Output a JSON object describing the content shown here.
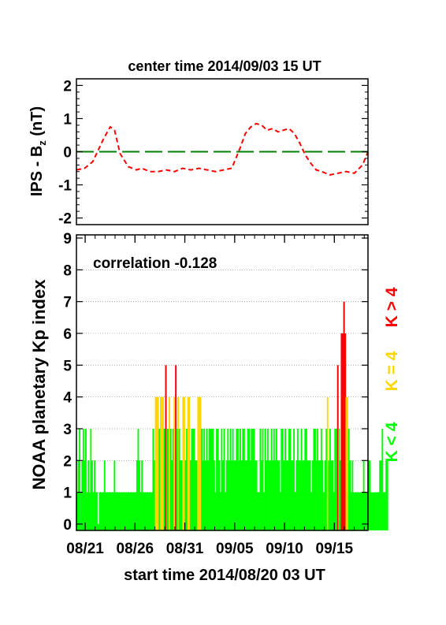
{
  "chart_data": [
    {
      "type": "line",
      "title": "center time 2014/09/03 15 UT",
      "ylabel": "IPS - B",
      "ylabel_sub": "z",
      "ylabel_unit": " (nT)",
      "ylim": [
        -2.2,
        2.2
      ],
      "yticks": [
        "-2",
        "-1",
        "0",
        "1",
        "2"
      ],
      "grid": false,
      "series": [
        {
          "color": "#ff0000",
          "style": "dashed",
          "x": [
            0,
            1.5,
            3,
            4,
            5,
            6.2,
            7,
            8,
            9.5,
            11,
            12,
            13.5,
            15,
            16.5,
            18,
            19.5,
            21,
            22.5,
            24,
            25.5,
            27,
            28.5,
            30,
            31,
            32,
            33,
            34,
            35,
            36,
            37,
            38,
            39,
            40,
            41,
            42,
            43,
            44,
            45,
            46.5,
            48,
            49.5,
            51,
            52.5,
            53.5
          ],
          "y": [
            -0.55,
            -0.5,
            -0.3,
            0.05,
            0.4,
            0.75,
            0.65,
            -0.05,
            -0.45,
            -0.55,
            -0.5,
            -0.6,
            -0.6,
            -0.55,
            -0.6,
            -0.5,
            -0.55,
            -0.5,
            -0.55,
            -0.6,
            -0.55,
            -0.5,
            0.1,
            0.55,
            0.75,
            0.85,
            0.8,
            0.65,
            0.7,
            0.6,
            0.65,
            0.7,
            0.55,
            0.25,
            -0.1,
            -0.35,
            -0.55,
            -0.6,
            -0.7,
            -0.65,
            -0.6,
            -0.65,
            -0.4,
            0.0
          ]
        },
        {
          "color": "#008000",
          "style": "long-dash",
          "x": [
            0,
            53.5
          ],
          "y": [
            0,
            0
          ]
        }
      ]
    },
    {
      "type": "bar",
      "annotation": "correlation -0.128",
      "ylabel": "NOAA planetary Kp index",
      "xlabel": "start time 2014/08/20 03 UT",
      "x_tick_labels": [
        "08/21",
        "08/26",
        "08/31",
        "09/05",
        "09/10",
        "09/15"
      ],
      "x_tick_days": [
        0.875,
        5.875,
        10.875,
        15.875,
        20.875,
        25.875
      ],
      "xlim_days": [
        0,
        29.25
      ],
      "bin_hours": 3,
      "ylim": [
        -0.2,
        9.1
      ],
      "yticks": [
        "0",
        "1",
        "2",
        "3",
        "4",
        "5",
        "6",
        "7",
        "8",
        "9"
      ],
      "grid": "horizontal dotted",
      "legend": [
        {
          "text": "K < 4",
          "color": "#00ff00"
        },
        {
          "text": "K = 4",
          "color": "#ffd700"
        },
        {
          "text": "K > 4",
          "color": "#ff0000"
        }
      ],
      "values": [
        1,
        2,
        3,
        1,
        2,
        3,
        2,
        3,
        1,
        2,
        1,
        3,
        2,
        1,
        2,
        1,
        1,
        0,
        1,
        1,
        1,
        1,
        2,
        1,
        1,
        1,
        1,
        1,
        1,
        1,
        2,
        1,
        1,
        1,
        1,
        1,
        1,
        1,
        1,
        1,
        1,
        1,
        1,
        1,
        1,
        1,
        1,
        1,
        2,
        3,
        2,
        1,
        2,
        1,
        1,
        1,
        1,
        1,
        1,
        1,
        1,
        3,
        2,
        4,
        4,
        4,
        3,
        4,
        4,
        4,
        3,
        5,
        3,
        3,
        4,
        3,
        2,
        3,
        4,
        5,
        3,
        4,
        3,
        2,
        2,
        4,
        4,
        2,
        3,
        4,
        4,
        2,
        3,
        3,
        3,
        2,
        2,
        4,
        4,
        4,
        3,
        2,
        3,
        2,
        3,
        2,
        3,
        3,
        3,
        3,
        2,
        1,
        3,
        3,
        2,
        1,
        3,
        2,
        3,
        1,
        2,
        3,
        2,
        3,
        2,
        3,
        2,
        2,
        3,
        3,
        2,
        3,
        2,
        3,
        3,
        2,
        2,
        3,
        3,
        2,
        3,
        3,
        3,
        2,
        2,
        1,
        1,
        3,
        2,
        3,
        1,
        3,
        2,
        3,
        2,
        2,
        3,
        2,
        3,
        2,
        3,
        2,
        2,
        1,
        3,
        3,
        2,
        3,
        2,
        2,
        3,
        3,
        2,
        2,
        3,
        1,
        2,
        3,
        2,
        2,
        3,
        2,
        2,
        3,
        3,
        2,
        2,
        2,
        1,
        2,
        3,
        3,
        2,
        3,
        2,
        2,
        3,
        2,
        1,
        2,
        3,
        4,
        2,
        3,
        2,
        2,
        1,
        3,
        3,
        5,
        3,
        2,
        6,
        6,
        7,
        6,
        4,
        4,
        3,
        2,
        1,
        2,
        1,
        1,
        1,
        1,
        1,
        1,
        1,
        1,
        2,
        1,
        1,
        1,
        2,
        2,
        1,
        1,
        1,
        1,
        1,
        1,
        1,
        2,
        2,
        3,
        1,
        1,
        2,
        2
      ]
    }
  ]
}
